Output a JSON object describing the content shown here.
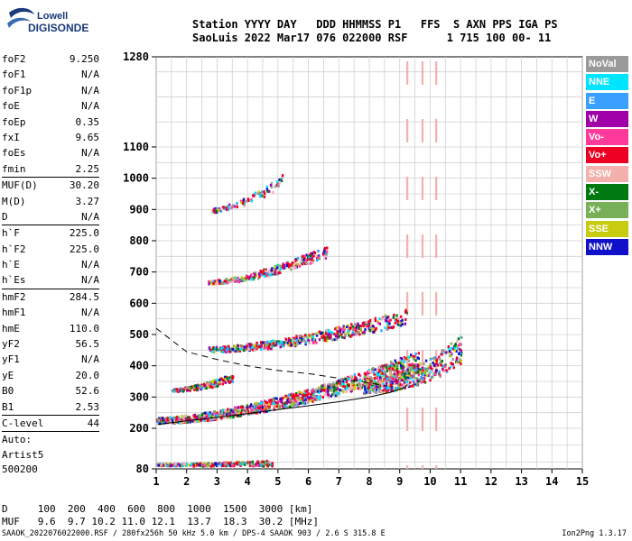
{
  "logo": {
    "line1": "Lowell",
    "line2": "DIGISONDE"
  },
  "header": {
    "line1": "Station YYYY DAY   DDD HHMMSS P1   FFS  S AXN PPS IGA PS",
    "line2": "SaoLuis 2022 Mar17 076 022000 RSF      1 715 100 00- 11"
  },
  "params": [
    {
      "k": "foF2",
      "v": "9.250"
    },
    {
      "k": "foF1",
      "v": "N/A"
    },
    {
      "k": "foF1p",
      "v": "N/A"
    },
    {
      "k": "foE",
      "v": "N/A"
    },
    {
      "k": "foEp",
      "v": "0.35"
    },
    {
      "k": "fxI",
      "v": "9.65"
    },
    {
      "k": "foEs",
      "v": "N/A"
    },
    {
      "k": "fmin",
      "v": "2.25"
    },
    {
      "k": "MUF(D)",
      "v": "30.20",
      "sep": true
    },
    {
      "k": "M(D)",
      "v": "3.27"
    },
    {
      "k": "D",
      "v": "N/A"
    },
    {
      "k": "h`F",
      "v": "225.0",
      "sep": true
    },
    {
      "k": "h`F2",
      "v": "225.0"
    },
    {
      "k": "h`E",
      "v": "N/A"
    },
    {
      "k": "h`Es",
      "v": "N/A"
    },
    {
      "k": "hmF2",
      "v": "284.5",
      "sep": true
    },
    {
      "k": "hmF1",
      "v": "N/A"
    },
    {
      "k": "hmE",
      "v": "110.0"
    },
    {
      "k": "yF2",
      "v": "56.5"
    },
    {
      "k": "yF1",
      "v": "N/A"
    },
    {
      "k": "yE",
      "v": "20.0"
    },
    {
      "k": "B0",
      "v": "52.6"
    },
    {
      "k": "B1",
      "v": "2.53"
    },
    {
      "k": "C-level",
      "v": "44",
      "sep": true
    }
  ],
  "auto": {
    "line1": "Auto:",
    "line2": "Artist5",
    "line3": "500200"
  },
  "legend": [
    {
      "label": "NoVal",
      "color": "#9a9a9a"
    },
    {
      "label": "NNE",
      "color": "#00e5ff"
    },
    {
      "label": "E",
      "color": "#3aa0ff"
    },
    {
      "label": "W",
      "color": "#a000a8"
    },
    {
      "label": "Vo-",
      "color": "#ff3a9a"
    },
    {
      "label": "Vo+",
      "color": "#ee0022"
    },
    {
      "label": "SSW",
      "color": "#f4b0ac"
    },
    {
      "label": "X-",
      "color": "#007a10"
    },
    {
      "label": "X+",
      "color": "#78b05a"
    },
    {
      "label": "SSE",
      "color": "#c8cc10"
    },
    {
      "label": "NNW",
      "color": "#1010c8"
    }
  ],
  "bottom": {
    "line1": "D     100  200  400  600  800  1000  1500  3000 [km]",
    "line2": "MUF   9.6  9.7 10.2 11.0 12.1  13.7  18.3  30.2 [MHz]"
  },
  "footer": "SAAOK_2022076022000.RSF / 280fx256h 50 kHz 5.0 km / DPS-4 SAAOK 903 / 2.6 S 315.8 E",
  "version": "Ion2Png 1.3.17",
  "chart_data": {
    "type": "scatter",
    "xlim": [
      1,
      15
    ],
    "ylim": [
      80,
      1280
    ],
    "x_ticks": [
      1,
      2,
      3,
      4,
      5,
      6,
      7,
      8,
      9,
      10,
      11,
      12,
      13,
      14,
      15
    ],
    "y_ticks": [
      80,
      200,
      300,
      400,
      500,
      600,
      700,
      800,
      900,
      1000,
      1100,
      1280
    ],
    "y_scale": "nonlinear (virtual height, km)",
    "grid": true,
    "traces": [
      {
        "name": "Es/low",
        "x0": 1.0,
        "x1": 4.8,
        "h0": 95,
        "h1": 100,
        "spread": 6,
        "density": 260
      },
      {
        "name": "F2 1st hop",
        "x0": 1.0,
        "x1": 9.6,
        "h0": 228,
        "h1": 420,
        "spread": 22,
        "density": 1100
      },
      {
        "name": "Fx near foF2",
        "x0": 7.8,
        "x1": 11.0,
        "h0": 330,
        "h1": 450,
        "spread": 35,
        "density": 400
      },
      {
        "name": "F 2nd hop lower",
        "x0": 1.5,
        "x1": 3.5,
        "h0": 325,
        "h1": 365,
        "spread": 10,
        "density": 180
      },
      {
        "name": "F 2nd hop",
        "x0": 2.7,
        "x1": 9.2,
        "h0": 455,
        "h1": 560,
        "spread": 18,
        "density": 520
      },
      {
        "name": "F 3rd hop",
        "x0": 2.7,
        "x1": 6.6,
        "h0": 670,
        "h1": 770,
        "spread": 14,
        "density": 260
      },
      {
        "name": "F 4th hop",
        "x0": 2.8,
        "x1": 5.2,
        "h0": 900,
        "h1": 1000,
        "spread": 14,
        "density": 90
      }
    ],
    "profile_curve": {
      "f": [
        1.05,
        2,
        3,
        4,
        5,
        6,
        7,
        8,
        8.7,
        9.15,
        9.25
      ],
      "h": [
        212,
        224,
        235,
        247,
        260,
        272,
        285,
        300,
        315,
        330,
        340
      ]
    },
    "dashed_curve": {
      "f": [
        1,
        2,
        3,
        4,
        5,
        6,
        7,
        8,
        8.6
      ],
      "h": [
        520,
        445,
        420,
        400,
        385,
        375,
        360,
        345,
        335
      ]
    },
    "markers": [
      {
        "f": 9.25,
        "color": "#f4b0ac",
        "style": "dashed-vertical"
      },
      {
        "f": 9.75,
        "color": "#f4b0ac",
        "style": "dashed-vertical"
      },
      {
        "f": 10.2,
        "color": "#f4b0ac",
        "style": "dashed-vertical"
      }
    ]
  }
}
